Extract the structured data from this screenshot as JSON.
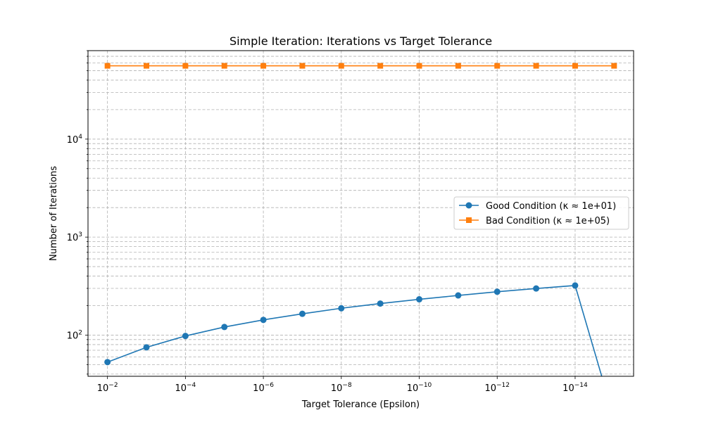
{
  "chart_data": {
    "type": "line",
    "title": "Simple Iteration: Iterations vs Target Tolerance",
    "xlabel": "Target Tolerance (Epsilon)",
    "ylabel": "Number of Iterations",
    "xscale": "log",
    "yscale": "log",
    "x_inverted": true,
    "xlim": [
      0.0316,
      3.16e-16
    ],
    "ylim": [
      38,
      80000
    ],
    "grid": true,
    "legend_position": "center-right",
    "x_ticks": [
      {
        "value": 0.01,
        "base": "10",
        "exp": "−2"
      },
      {
        "value": 0.0001,
        "base": "10",
        "exp": "−4"
      },
      {
        "value": 1e-06,
        "base": "10",
        "exp": "−6"
      },
      {
        "value": 1e-08,
        "base": "10",
        "exp": "−8"
      },
      {
        "value": 1e-10,
        "base": "10",
        "exp": "−10"
      },
      {
        "value": 1e-12,
        "base": "10",
        "exp": "−12"
      },
      {
        "value": 1e-14,
        "base": "10",
        "exp": "−14"
      }
    ],
    "y_ticks": [
      {
        "value": 100,
        "base": "10",
        "exp": "2"
      },
      {
        "value": 1000,
        "base": "10",
        "exp": "3"
      },
      {
        "value": 10000,
        "base": "10",
        "exp": "4"
      }
    ],
    "x": [
      0.01,
      0.001,
      0.0001,
      1e-05,
      1e-06,
      1e-07,
      1e-08,
      1e-09,
      1e-10,
      1e-11,
      1e-12,
      1e-13,
      1e-14,
      1e-15
    ],
    "series": [
      {
        "name": "Good Condition (κ ≈ 1e+01)",
        "color": "#1f77b4",
        "marker": "circle",
        "values": [
          53,
          75,
          98,
          121,
          143,
          165,
          188,
          210,
          232,
          254,
          277,
          299,
          321,
          0
        ]
      },
      {
        "name": "Bad Condition (κ ≈ 1e+05)",
        "color": "#ff7f0e",
        "marker": "square",
        "values": [
          56000,
          56000,
          56000,
          56000,
          56000,
          56000,
          56000,
          56000,
          56000,
          56000,
          56000,
          56000,
          56000,
          56000
        ]
      }
    ]
  }
}
